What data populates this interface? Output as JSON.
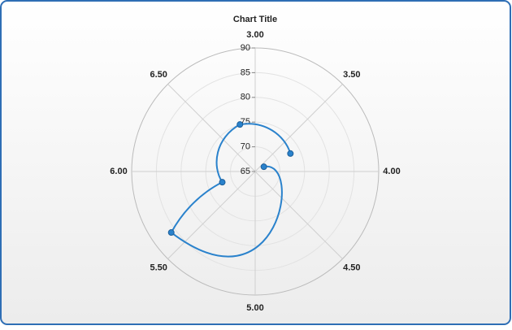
{
  "chart_data": {
    "type": "polar",
    "title": "Chart Title",
    "x": [
      3.68,
      5.6,
      5.8,
      6.8,
      7.7
    ],
    "values": [
      67,
      86,
      72,
      75,
      73
    ],
    "color": "#2a82cc",
    "xlim": [
      3,
      7
    ],
    "xticks": [
      {
        "value": 3,
        "label": "3.00"
      },
      {
        "value": 3.5,
        "label": "3.50"
      },
      {
        "value": 4,
        "label": "4.00"
      },
      {
        "value": 4.5,
        "label": "4.50"
      },
      {
        "value": 5,
        "label": "5.00"
      },
      {
        "value": 5.5,
        "label": "5.50"
      },
      {
        "value": 6,
        "label": "6.00"
      },
      {
        "value": 6.5,
        "label": "6.50"
      }
    ],
    "ylim": [
      65,
      90
    ],
    "yticks": [
      65,
      70,
      75,
      80,
      85,
      90
    ],
    "grid": true
  }
}
